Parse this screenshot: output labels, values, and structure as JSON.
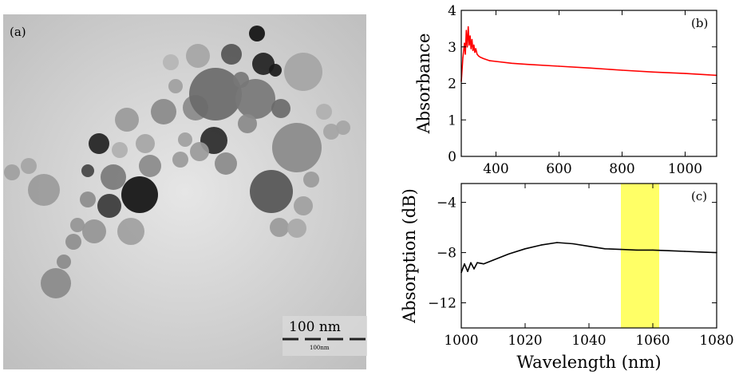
{
  "panels": {
    "a": {
      "label": "(a)",
      "scale_bar": "100 nm",
      "scale_bar_small_text": "100nm"
    }
  },
  "chart_data": [
    {
      "id": "b",
      "type": "line",
      "panel_label": "(b)",
      "title": "",
      "xlabel": "",
      "ylabel": "Absorbance",
      "xlim": [
        290,
        1100
      ],
      "ylim": [
        0,
        4
      ],
      "xticks": [
        400,
        600,
        800,
        1000
      ],
      "yticks": [
        0,
        1,
        2,
        3,
        4
      ],
      "grid": false,
      "series": [
        {
          "color": "#ff0000",
          "x": [
            290,
            295,
            300,
            303,
            306,
            309,
            312,
            315,
            318,
            321,
            324,
            327,
            330,
            333,
            336,
            340,
            345,
            350,
            360,
            380,
            400,
            450,
            500,
            600,
            700,
            800,
            900,
            1000,
            1100
          ],
          "y": [
            2.05,
            2.7,
            3.1,
            2.8,
            3.45,
            3.0,
            3.55,
            3.05,
            3.3,
            2.95,
            3.2,
            2.9,
            3.05,
            2.85,
            2.95,
            2.8,
            2.75,
            2.72,
            2.68,
            2.62,
            2.6,
            2.55,
            2.52,
            2.47,
            2.42,
            2.36,
            2.31,
            2.27,
            2.22
          ]
        }
      ]
    },
    {
      "id": "c",
      "type": "line",
      "panel_label": "(c)",
      "title": "",
      "xlabel": "Wavelength (nm)",
      "ylabel": "Absorption (dB)",
      "xlim": [
        1000,
        1080
      ],
      "ylim": [
        -14,
        -2.5
      ],
      "xticks": [
        1000,
        1020,
        1040,
        1060,
        1080
      ],
      "xtick_labels": [
        "1000",
        "1020",
        "1040",
        "1060",
        "1080"
      ],
      "yticks": [
        -4,
        -8,
        -12
      ],
      "ytick_labels": [
        "−4",
        "−8",
        "−12"
      ],
      "grid": false,
      "highlight_band": {
        "x": [
          1050,
          1062
        ],
        "color": "#ffff66"
      },
      "series": [
        {
          "color": "#000000",
          "x": [
            1000,
            1001,
            1002,
            1003,
            1004,
            1005,
            1007,
            1010,
            1015,
            1020,
            1025,
            1030,
            1035,
            1040,
            1045,
            1050,
            1055,
            1060,
            1065,
            1070,
            1075,
            1080
          ],
          "y": [
            -9.6,
            -8.9,
            -9.5,
            -8.8,
            -9.3,
            -8.8,
            -8.9,
            -8.6,
            -8.1,
            -7.7,
            -7.4,
            -7.2,
            -7.3,
            -7.5,
            -7.7,
            -7.75,
            -7.8,
            -7.8,
            -7.85,
            -7.9,
            -7.95,
            -8.0
          ]
        }
      ]
    }
  ]
}
